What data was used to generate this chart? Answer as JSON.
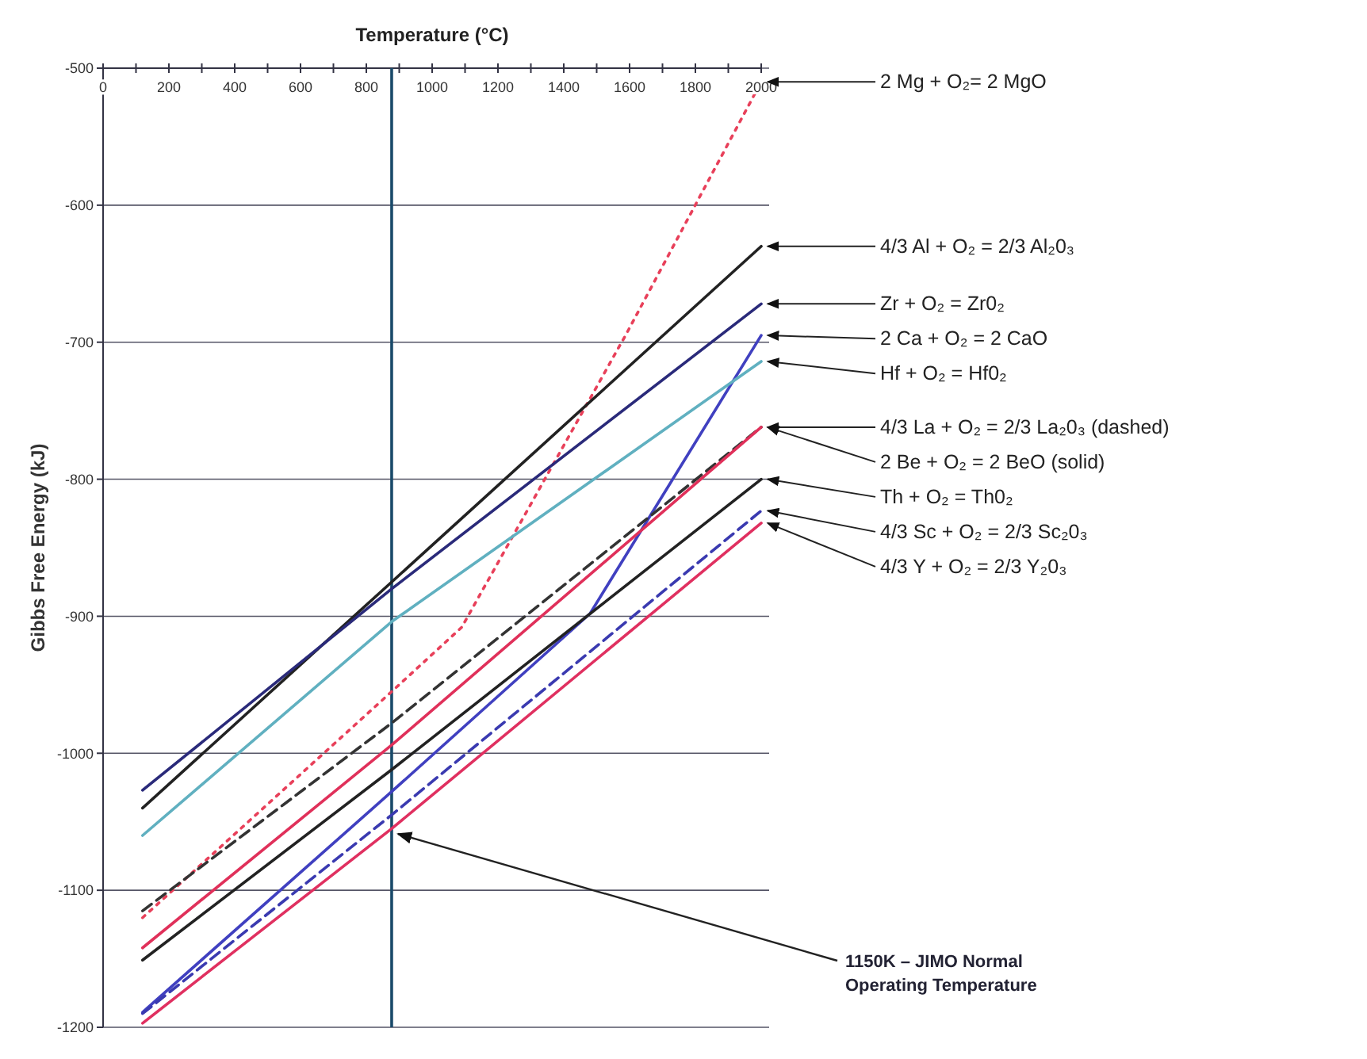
{
  "chart_data": {
    "type": "line",
    "xlabel": "Temperature (°C)",
    "ylabel": "Gibbs Free Energy (kJ)",
    "xlim": [
      0,
      2000
    ],
    "ylim": [
      -1200,
      -500
    ],
    "xticks": [
      0,
      {
        "value": 100,
        "label": null
      },
      200,
      {
        "value": 300,
        "label": null
      },
      400,
      {
        "value": 500,
        "label": null
      },
      600,
      {
        "value": 700,
        "label": null
      },
      800,
      {
        "value": 900,
        "label": null
      },
      1000,
      {
        "value": 1100,
        "label": null
      },
      1200,
      {
        "value": 1300,
        "label": null
      },
      1400,
      {
        "value": 1500,
        "label": null
      },
      1600,
      {
        "value": 1700,
        "label": null
      },
      1800,
      {
        "value": 1900,
        "label": null
      },
      2000
    ],
    "yticks": [
      -500,
      -600,
      -700,
      -800,
      -900,
      -1000,
      -1100,
      -1200
    ],
    "grid": "y",
    "line_style": "solid",
    "series": [
      {
        "name": "2 Mg + O₂= 2 MgO",
        "color": "#e8405a",
        "line_style": "dotted",
        "x": [
          120,
          877,
          1090,
          1590,
          2000
        ],
        "values": [
          -1120,
          -955,
          -908,
          -694,
          -510
        ]
      },
      {
        "name": "4/3 Al + O₂ = 2/3 Al₂0₃",
        "color": "#222222",
        "x": [
          120,
          877,
          2000
        ],
        "values": [
          -1040,
          -875,
          -630
        ]
      },
      {
        "name": "Zr + O₂ = Zr0₂",
        "color": "#2a2a7a",
        "x": [
          120,
          877,
          2000
        ],
        "values": [
          -1027,
          -880,
          -672
        ]
      },
      {
        "name": "2 Ca + O₂ = 2 CaO",
        "color": "#4040c0",
        "x": [
          120,
          877,
          1480,
          2000
        ],
        "values": [
          -1189,
          -1028,
          -898,
          -695
        ]
      },
      {
        "name": "Hf + O₂ = Hf0₂",
        "color": "#60b0c0",
        "x": [
          120,
          877,
          2000
        ],
        "values": [
          -1060,
          -904,
          -714
        ]
      },
      {
        "name": "4/3 La + O₂ = 2/3 La₂0₃ (dashed)",
        "color": "#333333",
        "line_style": "dashed",
        "x": [
          120,
          877,
          2000
        ],
        "values": [
          -1115,
          -978,
          -762
        ]
      },
      {
        "name": "2 Be + O₂ = 2 BeO (solid)",
        "color": "#e0305a",
        "x": [
          120,
          877,
          2000
        ],
        "values": [
          -1142,
          -994,
          -762
        ]
      },
      {
        "name": "Th + O₂ =  Th0₂",
        "color": "#222222",
        "x": [
          120,
          877,
          2000
        ],
        "values": [
          -1151,
          -1012,
          -800
        ]
      },
      {
        "name": "4/3 Sc + O₂ = 2/3 Sc₂0₃",
        "color": "#3a3ab0",
        "line_style": "dashed",
        "x": [
          120,
          877,
          2000
        ],
        "values": [
          -1190,
          -1045,
          -823
        ]
      },
      {
        "name": "4/3 Y + O₂ = 2/3 Y₂0₃",
        "color": "#e03060",
        "x": [
          120,
          877,
          2000
        ],
        "values": [
          -1197,
          -1055,
          -832
        ]
      }
    ],
    "ref_lines": [
      {
        "axis": "x",
        "value": 877,
        "label": "1150K – JIMO Normal\nOperating Temperature",
        "color": "#1a4a6a"
      }
    ]
  }
}
